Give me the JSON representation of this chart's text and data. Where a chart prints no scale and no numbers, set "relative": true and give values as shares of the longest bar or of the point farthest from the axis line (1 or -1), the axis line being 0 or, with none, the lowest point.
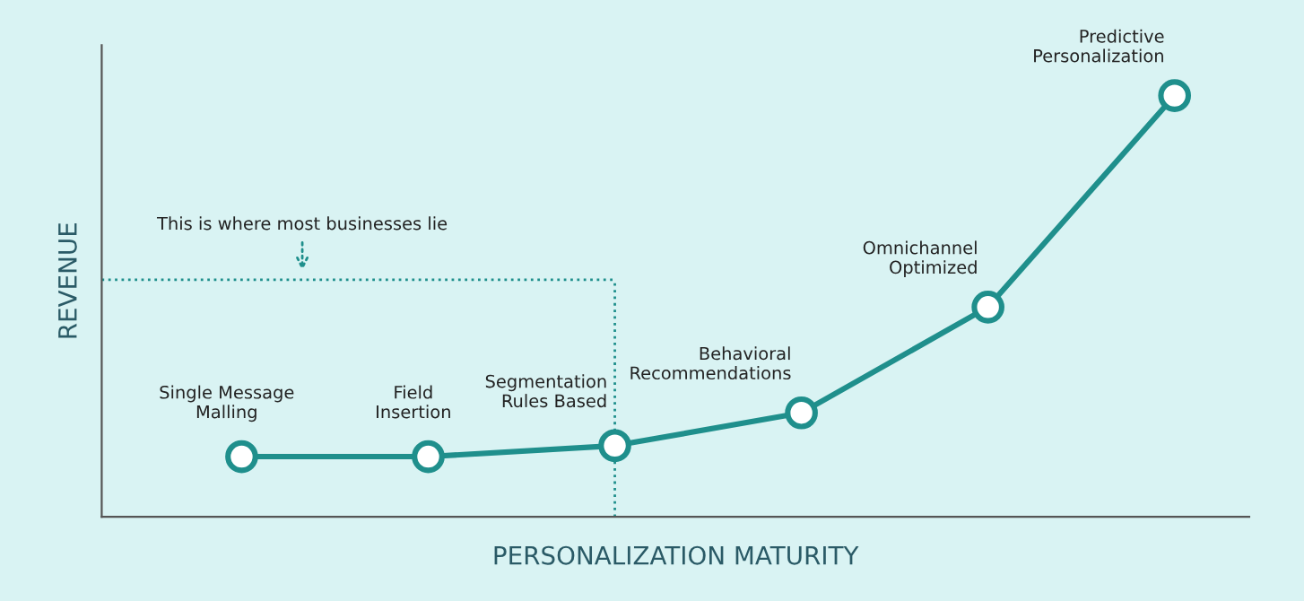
{
  "chart_data": {
    "type": "line",
    "relative": true,
    "xlabel": "PERSONALIZATION MATURITY",
    "ylabel": "REVENUE",
    "categories": [
      null,
      null,
      null,
      null,
      null,
      null
    ],
    "series": [
      {
        "color": "#1f8f8c",
        "values": [
          0.143,
          0.143,
          0.169,
          0.247,
          0.498,
          1
        ]
      }
    ],
    "annotations": [
      "Single Message\nMalling",
      "Field\nInsertion",
      "Segmentation\nRules Based",
      "Behavioral\nRecommendations",
      "Omnichannel\nOptimized",
      "Predictive\nPersonalization",
      "This is where most businesses lie"
    ],
    "marker": "circle",
    "line_style": "solid"
  }
}
